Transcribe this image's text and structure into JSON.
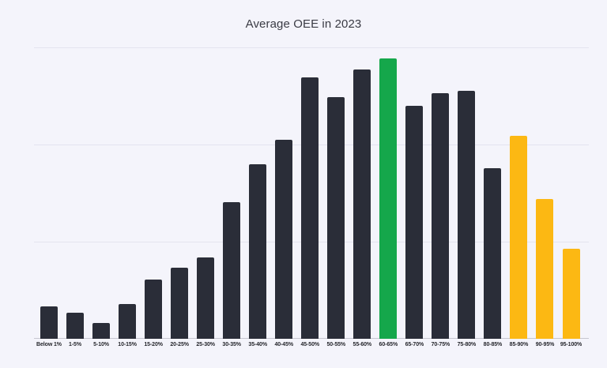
{
  "page": {
    "background_color": "#f4f4fb"
  },
  "chart_data": {
    "type": "bar",
    "title": "Average OEE in 2023",
    "categories": [
      "Below 1%",
      "1-5%",
      "5-10%",
      "10-15%",
      "15-20%",
      "20-25%",
      "25-30%",
      "30-35%",
      "35-40%",
      "40-45%",
      "45-50%",
      "50-55%",
      "55-60%",
      "60-65%",
      "65-70%",
      "70-75%",
      "75-80%",
      "80-85%",
      "85-90%",
      "90-95%",
      "95-100%"
    ],
    "values": [
      0.33,
      0.27,
      0.16,
      0.36,
      0.61,
      0.73,
      0.84,
      1.41,
      1.8,
      2.05,
      2.69,
      2.49,
      2.77,
      2.89,
      2.4,
      2.53,
      2.55,
      1.76,
      2.09,
      1.44,
      0.93
    ],
    "ylim": [
      0,
      3
    ],
    "gridlines_at": [
      1,
      2,
      3
    ],
    "grid": true,
    "legend_position": "none",
    "xlabel": "",
    "ylabel": "",
    "y_tick_labels_visible": false,
    "value_units": "relative units; 1.0 = one horizontal gridline interval (y-axis is unlabeled in the chart)",
    "bar_color_keys": [
      "dark",
      "dark",
      "dark",
      "dark",
      "dark",
      "dark",
      "dark",
      "dark",
      "dark",
      "dark",
      "dark",
      "dark",
      "dark",
      "green",
      "dark",
      "dark",
      "dark",
      "dark",
      "yellow",
      "yellow",
      "yellow"
    ],
    "palette": {
      "dark": "#2a2d38",
      "green": "#15a74b",
      "yellow": "#fcb813",
      "gridline": "#e4e4ef",
      "axis_line": "#c6c6d0",
      "title_text": "#3a3b44",
      "label_text": "#25262c",
      "background": "#f4f4fb"
    }
  }
}
